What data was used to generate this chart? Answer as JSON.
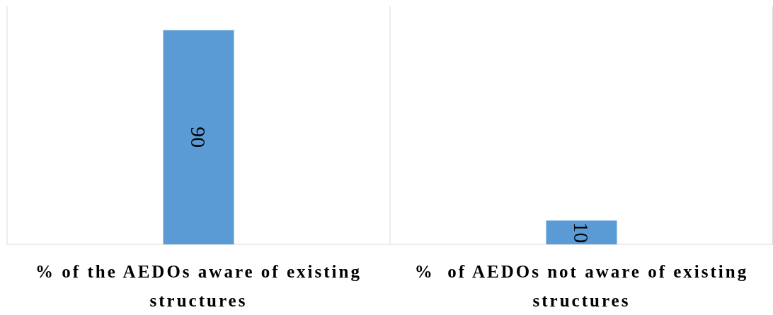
{
  "chart_data": {
    "type": "bar",
    "categories": [
      "% of the AEDOs aware of existing structures",
      "%  of AEDOs not aware of existing structures"
    ],
    "values": [
      90,
      10
    ],
    "color": "#5b9bd5",
    "ylim": [
      0,
      100
    ],
    "data_labels": true
  }
}
